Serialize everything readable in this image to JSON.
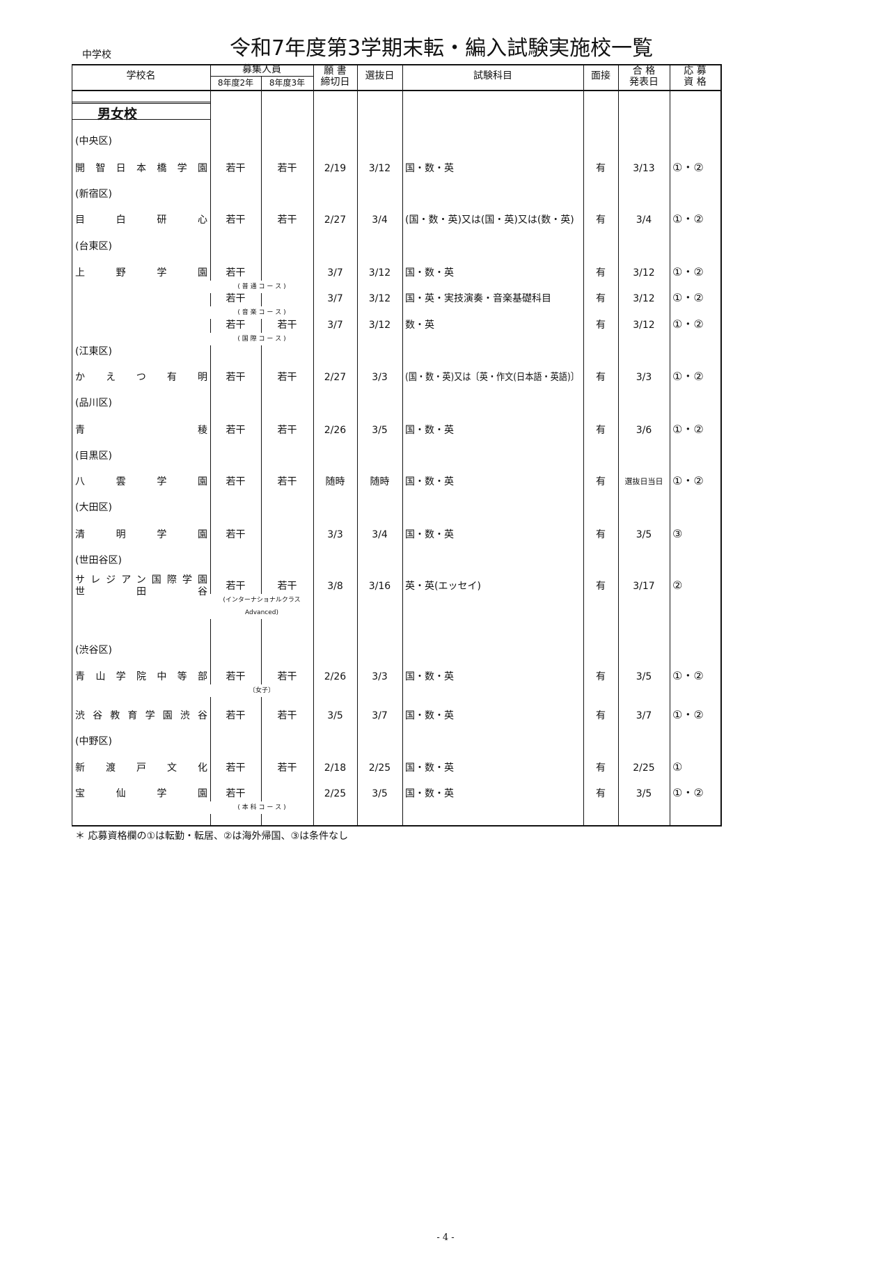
{
  "doc": {
    "kind": "中学校",
    "title": "令和7年度第3学期末転・編入試験実施校一覧",
    "section": "男女校",
    "footnote": "＊ 応募資格欄の①は転勤・転居、②は海外帰国、③は条件なし",
    "page": "- 4 -"
  },
  "headers": {
    "school": "学校名",
    "capacity": "募集人員",
    "cap2": "8年度2年",
    "cap3": "8年度3年",
    "deadline": "願 書\n締切日",
    "exam_date": "選抜日",
    "subjects": "試験科目",
    "interview": "面接",
    "result": "合 格\n発表日",
    "qual": "応 募\n資 格"
  },
  "rows": [
    {
      "type": "ward",
      "label": "(中央区)"
    },
    {
      "type": "school",
      "name": "開智日本橋学園",
      "cap2": "若干",
      "cap3": "若干",
      "deadline": "2/19",
      "exam": "3/12",
      "subjects": "国・数・英",
      "interview": "有",
      "result": "3/13",
      "qual": "①・②"
    },
    {
      "type": "ward",
      "label": "(新宿区)"
    },
    {
      "type": "school",
      "name": "目白研心",
      "cap2": "若干",
      "cap3": "若干",
      "deadline": "2/27",
      "exam": "3/4",
      "subjects": "(国・数・英)又は(国・英)又は(数・英)",
      "interview": "有",
      "result": "3/4",
      "qual": "①・②"
    },
    {
      "type": "ward",
      "label": "(台東区)"
    },
    {
      "type": "school",
      "name": "上野学園",
      "cap2": "若干",
      "cap3": "",
      "note": "( 普 通 コ ー ス )",
      "deadline": "3/7",
      "exam": "3/12",
      "subjects": "国・数・英",
      "interview": "有",
      "result": "3/12",
      "qual": "①・②"
    },
    {
      "type": "school",
      "name": "",
      "cap2": "若干",
      "cap3": "",
      "note": "( 音 楽 コ ー ス )",
      "deadline": "3/7",
      "exam": "3/12",
      "subjects": "国・英・実技演奏・音楽基礎科目",
      "interview": "有",
      "result": "3/12",
      "qual": "①・②"
    },
    {
      "type": "school",
      "name": "",
      "cap2": "若干",
      "cap3": "若干",
      "note": "( 国 際 コ ー ス )",
      "deadline": "3/7",
      "exam": "3/12",
      "subjects": "数・英",
      "interview": "有",
      "result": "3/12",
      "qual": "①・②"
    },
    {
      "type": "ward",
      "label": "(江東区)"
    },
    {
      "type": "school",
      "name": "かえつ有明",
      "cap2": "若干",
      "cap3": "若干",
      "deadline": "2/27",
      "exam": "3/3",
      "subjects": "(国・数・英)又は〔英・作文(日本語・英語)〕",
      "interview": "有",
      "result": "3/3",
      "qual": "①・②"
    },
    {
      "type": "ward",
      "label": "(品川区)"
    },
    {
      "type": "school",
      "name": "青稜",
      "cap2": "若干",
      "cap3": "若干",
      "deadline": "2/26",
      "exam": "3/5",
      "subjects": "国・数・英",
      "interview": "有",
      "result": "3/6",
      "qual": "①・②"
    },
    {
      "type": "ward",
      "label": "(目黒区)"
    },
    {
      "type": "school",
      "name": "八雲学園",
      "cap2": "若干",
      "cap3": "若干",
      "deadline": "随時",
      "exam": "随時",
      "subjects": "国・数・英",
      "interview": "有",
      "result": "選抜日当日",
      "qual": "①・②"
    },
    {
      "type": "ward",
      "label": "(大田区)"
    },
    {
      "type": "school",
      "name": "清明学園",
      "cap2": "若干",
      "cap3": "",
      "deadline": "3/3",
      "exam": "3/4",
      "subjects": "国・数・英",
      "interview": "有",
      "result": "3/5",
      "qual": "③"
    },
    {
      "type": "ward",
      "label": "(世田谷区)"
    },
    {
      "type": "school",
      "name": "サレジアン国際学園",
      "name2": "世田谷",
      "cap2": "若干",
      "cap3": "若干",
      "note": "(インターナショナルクラス",
      "note2": "Advanced)",
      "deadline": "3/8",
      "exam": "3/16",
      "subjects": "英・英(エッセイ)",
      "interview": "有",
      "result": "3/17",
      "qual": "②"
    },
    {
      "type": "ward",
      "label": "(渋谷区)"
    },
    {
      "type": "school",
      "name": "青山学院中等部",
      "cap2": "若干",
      "cap3": "若干",
      "note": "〔女子〕",
      "deadline": "2/26",
      "exam": "3/3",
      "subjects": "国・数・英",
      "interview": "有",
      "result": "3/5",
      "qual": "①・②"
    },
    {
      "type": "school",
      "name": "渋谷教育学園渋谷",
      "cap2": "若干",
      "cap3": "若干",
      "deadline": "3/5",
      "exam": "3/7",
      "subjects": "国・数・英",
      "interview": "有",
      "result": "3/7",
      "qual": "①・②"
    },
    {
      "type": "ward",
      "label": "(中野区)"
    },
    {
      "type": "school",
      "name": "新渡戸文化",
      "cap2": "若干",
      "cap3": "若干",
      "deadline": "2/18",
      "exam": "2/25",
      "subjects": "国・数・英",
      "interview": "有",
      "result": "2/25",
      "qual": "①"
    },
    {
      "type": "school",
      "name": "宝仙学園",
      "cap2": "若干",
      "cap3": "",
      "note": "( 本 科 コ ー ス )",
      "deadline": "2/25",
      "exam": "3/5",
      "subjects": "国・数・英",
      "interview": "有",
      "result": "3/5",
      "qual": "①・②"
    }
  ]
}
